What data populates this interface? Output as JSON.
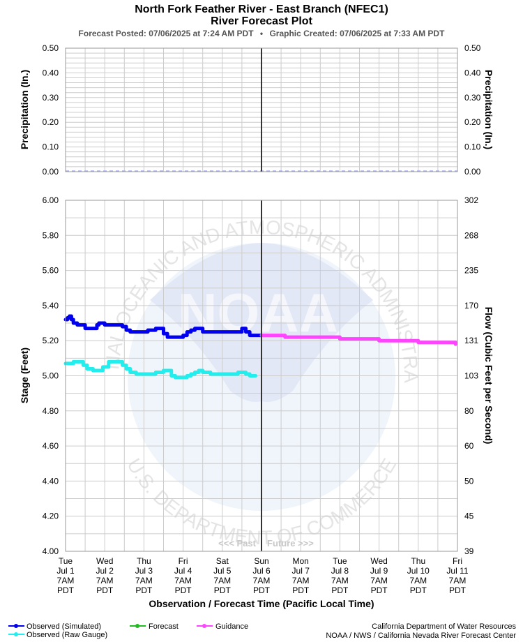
{
  "header": {
    "title_line1": "North Fork Feather River - East Branch (NFEC1)",
    "title_line2": "River Forecast Plot",
    "posted": "Forecast Posted: 07/06/2025 at 7:24 AM PDT",
    "bullet": "•",
    "created": "Graphic Created: 07/06/2025 at 7:33 AM PDT"
  },
  "watermark": {
    "ring_top": "NATIONAL OCEANIC AND ATMOSPHERIC ADMINISTRATION",
    "ring_bottom": "U.S. DEPARTMENT OF COMMERCE",
    "logo": "NOAA"
  },
  "markers": {
    "past": "<<< Past",
    "future": "Future >>>"
  },
  "colors": {
    "observed_simulated": "#0000ee",
    "observed_raw": "#22eeee",
    "forecast": "#22bb22",
    "guidance": "#ff44ff",
    "grid": "#cccccc",
    "now_line": "#333333",
    "precip_dash": "#aab0ee"
  },
  "chart_data": [
    {
      "type": "line",
      "panel": "precipitation",
      "ylabel_left": "Precipitation (In.)",
      "ylabel_right": "Precipitation (In.)",
      "ylim": [
        0,
        0.5
      ],
      "yticks": [
        "0.00",
        "0.10",
        "0.20",
        "0.30",
        "0.40",
        "0.50"
      ],
      "series": [
        {
          "x": [
            0,
            10
          ],
          "values": [
            0,
            0
          ]
        }
      ]
    },
    {
      "type": "line",
      "panel": "stage",
      "xlabel": "Observation / Forecast Time (Pacific Local Time)",
      "ylabel_left": "Stage (Feet)",
      "ylabel_right": "Flow (Cubic Feet per Second)",
      "ylim": [
        4.0,
        6.0
      ],
      "yticks_left": [
        "4.00",
        "4.20",
        "4.40",
        "4.60",
        "4.80",
        "5.00",
        "5.20",
        "5.40",
        "5.60",
        "5.80",
        "6.00"
      ],
      "yticks_right": [
        "39",
        "45",
        "50",
        "60",
        "80",
        "103",
        "131",
        "170",
        "235",
        "268",
        "302"
      ],
      "x_ticks": [
        [
          "Tue",
          "Jul 1",
          "7AM",
          "PDT"
        ],
        [
          "Wed",
          "Jul 2",
          "7AM",
          "PDT"
        ],
        [
          "Thu",
          "Jul 3",
          "7AM",
          "PDT"
        ],
        [
          "Fri",
          "Jul 4",
          "7AM",
          "PDT"
        ],
        [
          "Sat",
          "Jul 5",
          "7AM",
          "PDT"
        ],
        [
          "Sun",
          "Jul 6",
          "7AM",
          "PDT"
        ],
        [
          "Mon",
          "Jul 7",
          "7AM",
          "PDT"
        ],
        [
          "Tue",
          "Jul 8",
          "7AM",
          "PDT"
        ],
        [
          "Wed",
          "Jul 9",
          "7AM",
          "PDT"
        ],
        [
          "Thu",
          "Jul 10",
          "7AM",
          "PDT"
        ],
        [
          "Fri",
          "Jul 11",
          "7AM",
          "PDT"
        ]
      ],
      "now_index": 5,
      "series": [
        {
          "name": "Observed (Simulated)",
          "x": [
            0,
            0.05,
            0.1,
            0.15,
            0.2,
            0.3,
            0.4,
            0.5,
            0.55,
            0.7,
            0.8,
            0.85,
            0.9,
            1.0,
            1.1,
            1.3,
            1.45,
            1.55,
            1.65,
            1.75,
            1.8,
            1.85,
            1.9,
            2.0,
            2.1,
            2.2,
            2.3,
            2.4,
            2.5,
            2.6,
            2.7,
            2.8,
            3.0,
            3.1,
            3.2,
            3.3,
            3.4,
            3.5,
            3.6,
            3.7,
            3.8,
            4.0,
            4.2,
            4.4,
            4.5,
            4.6,
            4.7,
            4.8,
            4.9,
            5.0
          ],
          "values": [
            5.32,
            5.33,
            5.34,
            5.32,
            5.3,
            5.29,
            5.29,
            5.27,
            5.27,
            5.27,
            5.29,
            5.3,
            5.3,
            5.29,
            5.29,
            5.29,
            5.28,
            5.26,
            5.25,
            5.25,
            5.25,
            5.25,
            5.25,
            5.25,
            5.26,
            5.26,
            5.27,
            5.27,
            5.24,
            5.22,
            5.22,
            5.22,
            5.23,
            5.25,
            5.26,
            5.27,
            5.27,
            5.25,
            5.25,
            5.25,
            5.25,
            5.25,
            5.25,
            5.25,
            5.27,
            5.25,
            5.23,
            5.23,
            5.23,
            5.23
          ]
        },
        {
          "name": "Observed (Raw Gauge)",
          "x": [
            0,
            0.1,
            0.2,
            0.3,
            0.45,
            0.55,
            0.7,
            0.8,
            0.85,
            0.95,
            1.1,
            1.25,
            1.35,
            1.45,
            1.55,
            1.65,
            1.8,
            2.0,
            2.2,
            2.3,
            2.4,
            2.5,
            2.6,
            2.7,
            2.8,
            3.0,
            3.1,
            3.2,
            3.3,
            3.4,
            3.5,
            3.7,
            4.0,
            4.2,
            4.3,
            4.4,
            4.5,
            4.6,
            4.7,
            4.8,
            4.85
          ],
          "values": [
            5.07,
            5.07,
            5.08,
            5.08,
            5.06,
            5.04,
            5.03,
            5.03,
            5.03,
            5.05,
            5.08,
            5.08,
            5.08,
            5.06,
            5.04,
            5.02,
            5.01,
            5.01,
            5.01,
            5.02,
            5.02,
            5.03,
            5.03,
            5.0,
            4.99,
            4.99,
            5.0,
            5.01,
            5.02,
            5.03,
            5.02,
            5.01,
            5.01,
            5.01,
            5.01,
            5.02,
            5.02,
            5.01,
            5.0,
            5.0,
            5.0
          ]
        },
        {
          "name": "Guidance",
          "x": [
            5.0,
            5.6,
            6.0,
            7.0,
            7.35,
            8.0,
            8.4,
            9.0,
            9.4,
            9.95
          ],
          "values": [
            5.23,
            5.22,
            5.22,
            5.21,
            5.21,
            5.2,
            5.2,
            5.19,
            5.19,
            5.18
          ]
        },
        {
          "name": "Forecast",
          "x": [],
          "values": []
        }
      ]
    }
  ],
  "legend": {
    "observed_simulated": "Observed (Simulated)",
    "observed_raw": "Observed (Raw Gauge)",
    "forecast": "Forecast",
    "guidance": "Guidance"
  },
  "credits": {
    "line1": "California Department of Water Resources",
    "line2": "NOAA / NWS / California Nevada River Forecast Center"
  }
}
